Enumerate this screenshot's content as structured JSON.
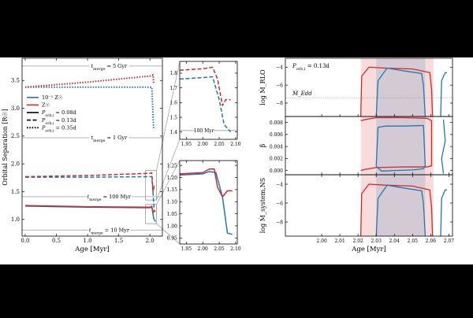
{
  "chart_data": [
    {
      "type": "line",
      "panel": "main",
      "xlabel": "Age [Myr]",
      "ylabel": "Orbital Separation [R☉]",
      "xlim": [
        -0.05,
        2.2
      ],
      "ylim": [
        0.7,
        3.9
      ],
      "xticks": [
        0.0,
        0.5,
        1.0,
        1.5,
        2.0
      ],
      "yticks": [
        1.0,
        1.5,
        2.0,
        2.5,
        3.0,
        3.5
      ],
      "legend": {
        "placement": "upper-left",
        "entries": [
          {
            "label": "10⁻¹ Z☉",
            "color": "#1f77b4",
            "style": "solid"
          },
          {
            "label": "Z☉",
            "color": "#d62728",
            "style": "solid"
          },
          {
            "label": "P_orb,i = 0.08d",
            "color": "#000000",
            "style": "solid"
          },
          {
            "label": "P_orb,i = 0.13d",
            "color": "#000000",
            "style": "dashed"
          },
          {
            "label": "P_orb,i = 0.35d",
            "color": "#000000",
            "style": "dotted"
          }
        ]
      },
      "reference_lines": [
        {
          "y": 3.76,
          "label": "t_merge = 5 Gyr"
        },
        {
          "y": 2.47,
          "label": "t_merge = 1 Gyr"
        },
        {
          "y": 1.41,
          "label": "t_merge = 100 Myr"
        },
        {
          "y": 0.81,
          "label": "t_merge = 10 Myr"
        }
      ],
      "series": [
        {
          "color": "#1f77b4",
          "style": "dotted",
          "x": [
            0,
            1.0,
            2.0,
            2.03,
            2.06
          ],
          "y": [
            3.38,
            3.38,
            3.38,
            3.38,
            2.62
          ]
        },
        {
          "color": "#d62728",
          "style": "dotted",
          "x": [
            0,
            1.0,
            2.0,
            2.05,
            2.06
          ],
          "y": [
            3.38,
            3.47,
            3.58,
            3.6,
            3.45
          ]
        },
        {
          "color": "#1f77b4",
          "style": "dashed",
          "x": [
            0,
            1.0,
            2.0,
            2.03,
            2.07
          ],
          "y": [
            1.76,
            1.76,
            1.77,
            1.77,
            1.15
          ]
        },
        {
          "color": "#d62728",
          "style": "dashed",
          "x": [
            0,
            1.0,
            2.0,
            2.03,
            2.05,
            2.07
          ],
          "y": [
            1.77,
            1.79,
            1.83,
            1.84,
            1.5,
            1.62
          ]
        },
        {
          "color": "#1f77b4",
          "style": "solid",
          "x": [
            0,
            1.0,
            2.0,
            2.03,
            2.06,
            2.09
          ],
          "y": [
            1.24,
            1.22,
            1.21,
            1.23,
            1.02,
            0.96
          ]
        },
        {
          "color": "#d62728",
          "style": "solid",
          "x": [
            0,
            1.0,
            2.0,
            2.03,
            2.05,
            2.07,
            2.09
          ],
          "y": [
            1.25,
            1.23,
            1.22,
            1.24,
            1.12,
            1.15,
            1.15
          ]
        }
      ]
    },
    {
      "type": "line",
      "panel": "inset-top",
      "xlim": [
        1.93,
        2.105
      ],
      "ylim": [
        1.35,
        1.88
      ],
      "xticks": [
        1.95,
        2.0,
        2.05,
        2.1
      ],
      "yticks": [
        1.4,
        1.5,
        1.6,
        1.7,
        1.8
      ],
      "reference_lines": [
        {
          "y": 1.41,
          "label": "100 Myr"
        }
      ],
      "series": [
        {
          "color": "#1f77b4",
          "style": "dashed",
          "x": [
            1.93,
            2.0,
            2.03,
            2.05,
            2.065,
            2.085
          ],
          "y": [
            1.76,
            1.77,
            1.775,
            1.62,
            1.45,
            1.4
          ]
        },
        {
          "color": "#d62728",
          "style": "dashed",
          "x": [
            1.93,
            2.0,
            2.03,
            2.045,
            2.06,
            2.07,
            2.085
          ],
          "y": [
            1.82,
            1.83,
            1.84,
            1.76,
            1.58,
            1.62,
            1.62
          ]
        }
      ]
    },
    {
      "type": "line",
      "panel": "inset-bottom",
      "xlim": [
        1.93,
        2.105
      ],
      "ylim": [
        0.925,
        1.27
      ],
      "xticks": [
        1.95,
        2.0,
        2.05,
        2.1
      ],
      "yticks": [
        0.95,
        1.0,
        1.05,
        1.1,
        1.15,
        1.2,
        1.25
      ],
      "series": [
        {
          "color": "#1f77b4",
          "style": "solid",
          "x": [
            1.93,
            2.0,
            2.02,
            2.04,
            2.06,
            2.075,
            2.09
          ],
          "y": [
            1.21,
            1.215,
            1.225,
            1.22,
            1.12,
            0.97,
            0.965
          ]
        },
        {
          "color": "#d62728",
          "style": "solid",
          "x": [
            1.93,
            2.0,
            2.02,
            2.035,
            2.045,
            2.06,
            2.075,
            2.09
          ],
          "y": [
            1.215,
            1.22,
            1.235,
            1.235,
            1.16,
            1.12,
            1.145,
            1.145
          ]
        }
      ]
    },
    {
      "type": "line",
      "panel": "right-top",
      "annotation": "P_orb,i = 0.13d",
      "ylabel": "log Ṁ_RLO",
      "xlim": [
        1.98,
        2.072
      ],
      "ylim": [
        -9.5,
        -3
      ],
      "yticks": [
        -8,
        -6,
        -4
      ],
      "reference_lines": [
        {
          "y": -7.4,
          "label": "Ṁ_Edd"
        }
      ],
      "shaded_spans": [
        {
          "x": [
            2.0215,
            2.0615
          ],
          "color": "#d62728"
        },
        {
          "x": [
            2.03,
            2.057
          ],
          "color": "#1f77b4"
        }
      ],
      "series": [
        {
          "color": "#d62728",
          "style": "solid",
          "x": [
            2.0215,
            2.022,
            2.026,
            2.035,
            2.05,
            2.0595,
            2.0605,
            2.061
          ],
          "y": [
            -9.5,
            -5.0,
            -4.0,
            -4.1,
            -4.2,
            -4.6,
            -6.5,
            -9.5
          ]
        },
        {
          "color": "#1f77b4",
          "style": "solid",
          "x": [
            2.03,
            2.031,
            2.036,
            2.045,
            2.055,
            2.056,
            2.057
          ],
          "y": [
            -9.5,
            -5.5,
            -4.1,
            -4.4,
            -4.7,
            -6.0,
            -9.5
          ]
        },
        {
          "color": "#1f77b4",
          "style": "solid",
          "x": [
            2.0655,
            2.066,
            2.068,
            2.069
          ],
          "y": [
            -9.5,
            -5.5,
            -4.6,
            -4.6
          ]
        }
      ]
    },
    {
      "type": "line",
      "panel": "right-middle",
      "ylabel": "β",
      "xlim": [
        1.98,
        2.072
      ],
      "ylim": [
        -0.0007,
        0.009
      ],
      "yticks": [
        0.0,
        0.002,
        0.004,
        0.006,
        0.008
      ],
      "shaded_spans": [
        {
          "x": [
            2.0215,
            2.0615
          ],
          "color": "#d62728"
        },
        {
          "x": [
            2.03,
            2.057
          ],
          "color": "#1f77b4"
        }
      ],
      "series": [
        {
          "color": "#d62728",
          "style": "solid",
          "x": [
            2.0215,
            2.024,
            2.03,
            2.045,
            2.058,
            2.0605,
            2.0605,
            2.058,
            2.045,
            2.03,
            2.024,
            2.0215
          ],
          "y": [
            0.0,
            0.0002,
            0.0005,
            0.0006,
            0.0006,
            0.0008,
            0.0083,
            0.0087,
            0.0088,
            0.0088,
            0.0085,
            0.0083
          ]
        },
        {
          "color": "#1f77b4",
          "style": "solid",
          "x": [
            2.03,
            2.033,
            2.04,
            2.05,
            2.056,
            2.057,
            2.056,
            2.045,
            2.035,
            2.031,
            2.03
          ],
          "y": [
            0.0007,
            -0.0001,
            0.0,
            0.0001,
            0.0003,
            0.0008,
            0.0075,
            0.0074,
            0.0074,
            0.0072,
            0.0007
          ]
        },
        {
          "color": "#1f77b4",
          "style": "solid",
          "x": [
            2.067,
            2.068,
            2.066,
            2.067
          ],
          "y": [
            0.0085,
            0.005,
            0.002,
            -0.0005
          ]
        }
      ]
    },
    {
      "type": "line",
      "panel": "right-bottom",
      "ylabel": "log Ṁ_system,NS",
      "xlabel": "Age [Myr]",
      "xlim": [
        1.98,
        2.072
      ],
      "ylim": [
        -9.5,
        -3
      ],
      "xticks": [
        2.0,
        2.01,
        2.02,
        2.03,
        2.04,
        2.05,
        2.06,
        2.07
      ],
      "yticks": [
        -8,
        -6,
        -4
      ],
      "shaded_spans": [
        {
          "x": [
            2.0215,
            2.0615
          ],
          "color": "#d62728"
        },
        {
          "x": [
            2.03,
            2.057
          ],
          "color": "#1f77b4"
        }
      ],
      "series": [
        {
          "color": "#d62728",
          "style": "solid",
          "x": [
            2.0215,
            2.022,
            2.026,
            2.035,
            2.05,
            2.0595,
            2.0605,
            2.061
          ],
          "y": [
            -9.5,
            -5.0,
            -4.0,
            -4.1,
            -4.2,
            -4.6,
            -6.5,
            -9.5
          ]
        },
        {
          "color": "#1f77b4",
          "style": "solid",
          "x": [
            2.03,
            2.031,
            2.036,
            2.045,
            2.055,
            2.056,
            2.057
          ],
          "y": [
            -9.5,
            -5.5,
            -4.1,
            -4.4,
            -4.7,
            -6.0,
            -9.5
          ]
        },
        {
          "color": "#1f77b4",
          "style": "solid",
          "x": [
            2.0655,
            2.066,
            2.068,
            2.069
          ],
          "y": [
            -9.5,
            -5.5,
            -4.6,
            -4.6
          ]
        }
      ]
    }
  ]
}
